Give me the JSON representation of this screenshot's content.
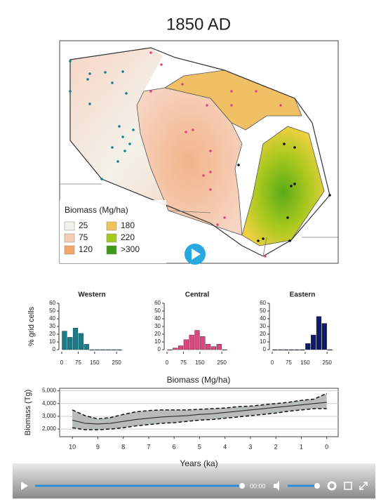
{
  "title": "1850 AD",
  "map": {
    "legend_title": "Biomass (Mg/ha)",
    "legend": [
      {
        "label": "25",
        "color": "#f2f2ec"
      },
      {
        "label": "75",
        "color": "#f6cbb4"
      },
      {
        "label": "120",
        "color": "#f3a869"
      },
      {
        "label": "180",
        "color": "#efc45a"
      },
      {
        "label": "220",
        "color": "#a9c81e"
      },
      {
        "label": ">300",
        "color": "#3b9a1c"
      }
    ]
  },
  "chart_data": [
    {
      "type": "histogram",
      "title": "Western",
      "y_label": "% grid cells",
      "bins": [
        0,
        25,
        50,
        75,
        100,
        125,
        150,
        175,
        200,
        225,
        250,
        275
      ],
      "values": [
        24,
        16,
        28,
        21,
        7,
        0,
        0,
        0,
        0,
        0,
        0
      ],
      "color": "#1a7c88",
      "xlim": [
        0,
        275
      ],
      "xticks": [
        0,
        75,
        150,
        250
      ],
      "ylim": [
        0,
        60
      ],
      "yticks": [
        0,
        10,
        20,
        30,
        40,
        50,
        60
      ]
    },
    {
      "type": "histogram",
      "title": "Central",
      "bins": [
        0,
        25,
        50,
        75,
        100,
        125,
        150,
        175,
        200,
        225,
        250,
        275
      ],
      "values": [
        0,
        2,
        5,
        13,
        19,
        25,
        17,
        7,
        4,
        7,
        0
      ],
      "color": "#e0457f",
      "xlim": [
        0,
        275
      ],
      "xticks": [
        0,
        75,
        150,
        250
      ],
      "ylim": [
        0,
        60
      ],
      "yticks": [
        0,
        10,
        20,
        30,
        40,
        50,
        60
      ]
    },
    {
      "type": "histogram",
      "title": "Eastern",
      "bins": [
        0,
        25,
        50,
        75,
        100,
        125,
        150,
        175,
        200,
        225,
        250,
        275
      ],
      "values": [
        0,
        0,
        0,
        0,
        0,
        0,
        8,
        19,
        43,
        34,
        0
      ],
      "color": "#0f1a6b",
      "xlim": [
        0,
        275
      ],
      "xticks": [
        0,
        75,
        150,
        250
      ],
      "ylim": [
        0,
        60
      ],
      "yticks": [
        0,
        10,
        20,
        30,
        40,
        50,
        60
      ]
    },
    {
      "type": "line",
      "y_label": "Biomass (Tg)",
      "x_label": "Years (ka)",
      "x": [
        10,
        9.5,
        9,
        8.5,
        8,
        7.5,
        7,
        6.5,
        6,
        5.5,
        5,
        4.5,
        4,
        3.5,
        3,
        2.5,
        2,
        1.5,
        1,
        0.5,
        0
      ],
      "series": [
        {
          "color": "#333333",
          "values": [
            2700,
            2450,
            2400,
            2450,
            2600,
            2750,
            2850,
            2950,
            3000,
            3050,
            3150,
            3200,
            3300,
            3400,
            3500,
            3600,
            3700,
            3800,
            3900,
            4000,
            4100
          ]
        },
        {
          "color": "#111111",
          "dash": true,
          "values": [
            3500,
            3050,
            2800,
            2900,
            3150,
            3350,
            3450,
            3500,
            3500,
            3500,
            3550,
            3600,
            3650,
            3750,
            3800,
            3900,
            4000,
            4100,
            4250,
            4350,
            4800
          ]
        },
        {
          "color": "#111111",
          "dash": true,
          "values": [
            2100,
            1950,
            1950,
            2000,
            2100,
            2250,
            2350,
            2450,
            2500,
            2600,
            2700,
            2750,
            2850,
            2950,
            3050,
            3150,
            3250,
            3400,
            3500,
            3600,
            3600
          ]
        }
      ],
      "band_color": "#b8bcb8",
      "xlim": [
        10.5,
        -0.45
      ],
      "xticks": [
        10,
        9,
        8,
        7,
        6,
        5,
        4,
        3,
        2,
        1,
        0
      ],
      "ylim": [
        1400,
        5200
      ],
      "yticks": [
        {
          "value": 2000,
          "label": "2,000"
        },
        {
          "value": 3000,
          "label": "3,000"
        },
        {
          "value": 4000,
          "label": "4,000"
        },
        {
          "value": 5000,
          "label": "5,000"
        }
      ],
      "grid": true
    }
  ],
  "shared_x_label": "Biomass (Mg/ha)",
  "player": {
    "time": "00:00"
  }
}
